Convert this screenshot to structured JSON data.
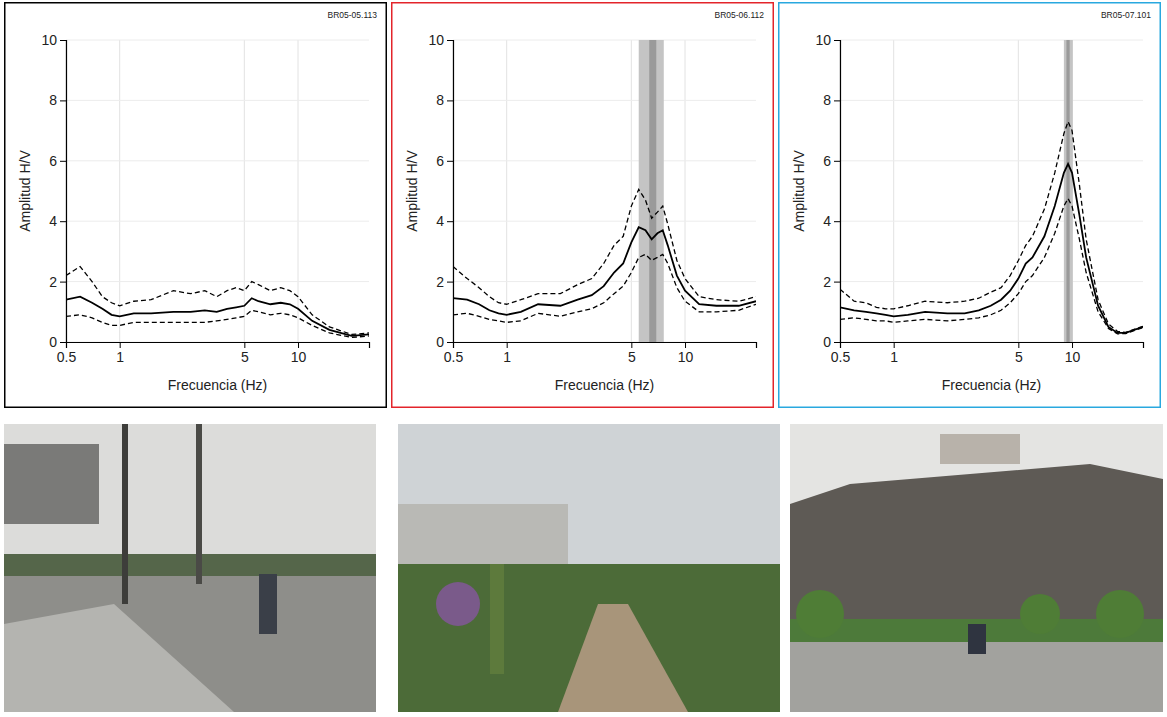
{
  "chart_data": [
    {
      "type": "line",
      "title": "BR05-05.113",
      "x_label": "Frecuencia (Hz)",
      "y_label": "Amplitud H/V",
      "color": "#000000",
      "log": "x",
      "grid": true,
      "xlim": [
        0.5,
        25
      ],
      "ylim": [
        0,
        10
      ],
      "xticks": [
        0.5,
        1,
        5,
        10
      ],
      "yticks": [
        0,
        2,
        4,
        6,
        8,
        10
      ],
      "x": [
        0.5,
        0.6,
        0.7,
        0.8,
        0.9,
        1,
        1.2,
        1.5,
        2,
        2.5,
        3,
        3.5,
        4,
        4.5,
        5,
        5.5,
        6,
        7,
        8,
        9,
        10,
        12,
        15,
        20,
        25
      ],
      "series": [
        {
          "color": "#000000",
          "line_style": "dashed",
          "values": [
            2.2,
            2.5,
            2.0,
            1.5,
            1.3,
            1.2,
            1.35,
            1.4,
            1.7,
            1.6,
            1.7,
            1.5,
            1.7,
            1.8,
            1.7,
            2.0,
            1.9,
            1.7,
            1.8,
            1.7,
            1.5,
            0.9,
            0.5,
            0.25,
            0.3
          ]
        },
        {
          "color": "#000000",
          "line_style": "solid",
          "values": [
            1.4,
            1.5,
            1.3,
            1.1,
            0.9,
            0.85,
            0.95,
            0.95,
            1.0,
            1.0,
            1.05,
            1.0,
            1.1,
            1.15,
            1.2,
            1.45,
            1.35,
            1.25,
            1.3,
            1.25,
            1.1,
            0.7,
            0.4,
            0.2,
            0.25
          ]
        },
        {
          "color": "#000000",
          "line_style": "dashed",
          "values": [
            0.85,
            0.9,
            0.8,
            0.65,
            0.55,
            0.55,
            0.65,
            0.65,
            0.65,
            0.65,
            0.65,
            0.7,
            0.75,
            0.8,
            0.85,
            1.05,
            1.0,
            0.9,
            0.95,
            0.9,
            0.8,
            0.55,
            0.3,
            0.15,
            0.2
          ]
        }
      ]
    },
    {
      "type": "line",
      "title": "BR05-06.112",
      "x_label": "Frecuencia (Hz)",
      "y_label": "Amplitud H/V",
      "color": "#e3242b",
      "log": "x",
      "grid": true,
      "xlim": [
        0.5,
        25
      ],
      "ylim": [
        0,
        10
      ],
      "xticks": [
        0.5,
        1,
        5,
        10
      ],
      "yticks": [
        0,
        2,
        4,
        6,
        8,
        10
      ],
      "f0_range": [
        5.5,
        7.6
      ],
      "f0_center": [
        6.3,
        6.9
      ],
      "x": [
        0.5,
        0.6,
        0.7,
        0.8,
        0.9,
        1,
        1.2,
        1.5,
        2,
        2.5,
        3,
        3.5,
        4,
        4.5,
        5,
        5.5,
        6,
        6.5,
        7,
        7.5,
        8,
        9,
        10,
        12,
        15,
        20,
        25
      ],
      "series": [
        {
          "color": "#000000",
          "line_style": "dashed",
          "values": [
            2.5,
            2.1,
            1.8,
            1.5,
            1.3,
            1.25,
            1.4,
            1.6,
            1.6,
            1.9,
            2.1,
            2.6,
            3.2,
            3.5,
            4.5,
            5.05,
            4.7,
            4.1,
            4.3,
            4.5,
            3.9,
            2.7,
            2.1,
            1.5,
            1.4,
            1.35,
            1.5
          ]
        },
        {
          "color": "#000000",
          "line_style": "solid",
          "values": [
            1.45,
            1.4,
            1.25,
            1.05,
            0.95,
            0.9,
            1.0,
            1.25,
            1.2,
            1.4,
            1.55,
            1.85,
            2.3,
            2.6,
            3.3,
            3.8,
            3.7,
            3.4,
            3.6,
            3.7,
            3.2,
            2.2,
            1.7,
            1.25,
            1.2,
            1.2,
            1.35
          ]
        },
        {
          "color": "#000000",
          "line_style": "dashed",
          "values": [
            0.9,
            0.95,
            0.85,
            0.75,
            0.7,
            0.65,
            0.7,
            0.95,
            0.85,
            1.0,
            1.1,
            1.3,
            1.6,
            1.85,
            2.3,
            2.8,
            2.9,
            2.7,
            2.8,
            2.9,
            2.6,
            1.8,
            1.35,
            1.0,
            1.0,
            1.05,
            1.25
          ]
        }
      ]
    },
    {
      "type": "line",
      "title": "BR05-07.101",
      "x_label": "Frecuencia (Hz)",
      "y_label": "Amplitud H/V",
      "color": "#29a8df",
      "log": "x",
      "grid": true,
      "xlim": [
        0.5,
        25
      ],
      "ylim": [
        0,
        10
      ],
      "xticks": [
        0.5,
        1,
        5,
        10
      ],
      "yticks": [
        0,
        2,
        4,
        6,
        8,
        10
      ],
      "f0_range": [
        9.0,
        10.1
      ],
      "f0_center": [
        9.3,
        9.7
      ],
      "x": [
        0.5,
        0.6,
        0.7,
        0.8,
        0.9,
        1,
        1.2,
        1.5,
        2,
        2.5,
        3,
        3.5,
        4,
        4.5,
        5,
        5.5,
        6,
        7,
        8,
        9,
        9.5,
        10,
        11,
        12,
        14,
        16,
        18,
        20,
        25
      ],
      "series": [
        {
          "color": "#000000",
          "line_style": "dashed",
          "values": [
            1.75,
            1.35,
            1.3,
            1.15,
            1.1,
            1.1,
            1.2,
            1.35,
            1.3,
            1.35,
            1.45,
            1.65,
            1.8,
            2.2,
            2.7,
            3.2,
            3.5,
            4.4,
            5.6,
            6.9,
            7.3,
            7.0,
            5.2,
            3.4,
            1.4,
            0.6,
            0.35,
            0.32,
            0.52
          ]
        },
        {
          "color": "#000000",
          "line_style": "solid",
          "values": [
            1.15,
            1.05,
            1.0,
            0.95,
            0.9,
            0.85,
            0.9,
            1.0,
            0.95,
            0.95,
            1.05,
            1.2,
            1.4,
            1.7,
            2.1,
            2.6,
            2.8,
            3.5,
            4.5,
            5.6,
            5.9,
            5.6,
            4.2,
            2.8,
            1.2,
            0.5,
            0.3,
            0.3,
            0.5
          ]
        },
        {
          "color": "#000000",
          "line_style": "dashed",
          "values": [
            0.75,
            0.8,
            0.75,
            0.7,
            0.7,
            0.65,
            0.7,
            0.75,
            0.7,
            0.75,
            0.8,
            0.9,
            1.05,
            1.3,
            1.6,
            2.0,
            2.2,
            2.8,
            3.6,
            4.5,
            4.75,
            4.5,
            3.4,
            2.3,
            1.0,
            0.45,
            0.27,
            0.28,
            0.48
          ]
        }
      ]
    }
  ]
}
